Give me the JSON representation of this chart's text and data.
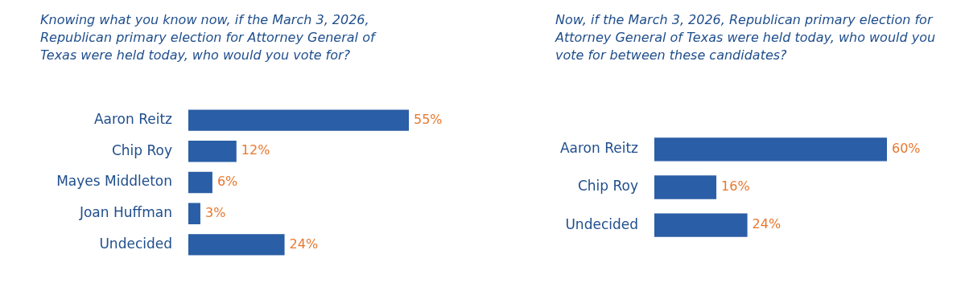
{
  "chart_data": [
    {
      "type": "bar",
      "orientation": "horizontal",
      "title": "Knowing what you know now, if the March 3, 2026, Republican primary election for Attorney General of Texas were held today, who would you vote for?",
      "categories": [
        "Aaron Reitz",
        "Chip Roy",
        "Mayes Middleton",
        "Joan Huffman",
        "Undecided"
      ],
      "values": [
        55,
        12,
        6,
        3,
        24
      ],
      "value_labels": [
        "55%",
        "12%",
        "6%",
        "3%",
        "24%"
      ],
      "color": "#2a5ea6"
    },
    {
      "type": "bar",
      "orientation": "horizontal",
      "title": "Now, if the March 3, 2026, Republican primary election for Attorney General of Texas were held today, who would you vote for between these candidates?",
      "categories": [
        "Aaron Reitz",
        "Chip Roy",
        "Undecided"
      ],
      "values": [
        60,
        16,
        24
      ],
      "value_labels": [
        "60%",
        "16%",
        "24%"
      ],
      "color": "#2a5ea6"
    }
  ]
}
